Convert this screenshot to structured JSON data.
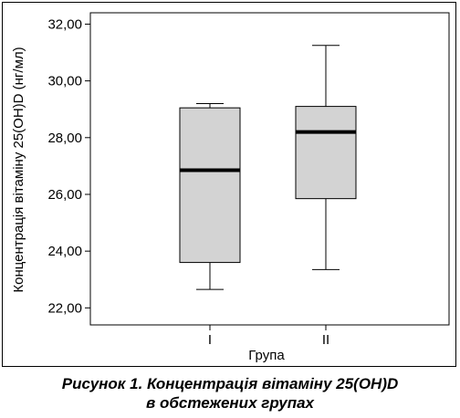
{
  "chart_data": {
    "type": "boxplot",
    "xlabel": "Група",
    "ylabel": "Концентрація вітаміну 25(OH)D (нг/мл)",
    "categories": [
      "I",
      "II"
    ],
    "ylim": [
      21.4,
      32.4
    ],
    "yticks": [
      "22,00",
      "24,00",
      "26,00",
      "28,00",
      "30,00",
      "32,00"
    ],
    "ytick_values": [
      22,
      24,
      26,
      28,
      30,
      32
    ],
    "boxes": [
      {
        "category": "I",
        "whisker_low": 22.65,
        "q1": 23.6,
        "median": 26.85,
        "q3": 29.05,
        "whisker_high": 29.2
      },
      {
        "category": "II",
        "whisker_low": 23.35,
        "q1": 25.85,
        "median": 28.2,
        "q3": 29.1,
        "whisker_high": 31.25
      }
    ],
    "colors": {
      "box_fill": "#d3d3d3",
      "stroke": "#000000"
    }
  },
  "caption": {
    "line1": "Рисунок 1.  Концентрація вітаміну 25(OH)D",
    "line2": "в обстежених групах"
  }
}
